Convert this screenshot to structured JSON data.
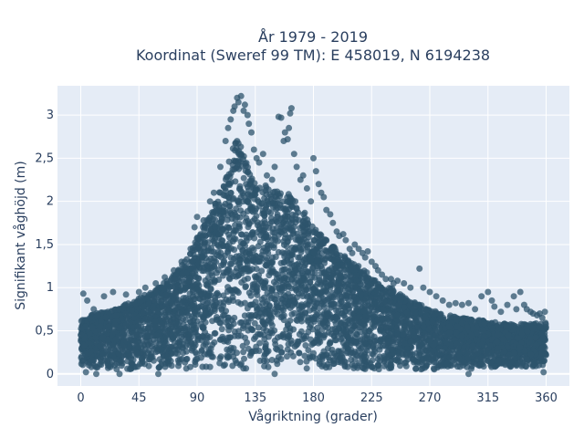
{
  "chart_data": {
    "type": "scatter",
    "title": [
      "År 1979 - 2019",
      "Koordinat (Sweref 99 TM): E 458019, N 6194238"
    ],
    "xlabel": "Vågriktning (grader)",
    "ylabel": "Signifikant våghöjd (m)",
    "xlim": [
      -18,
      378
    ],
    "ylim": [
      -0.14,
      3.34
    ],
    "x_ticks": [
      0,
      45,
      90,
      135,
      180,
      225,
      270,
      315,
      360
    ],
    "x_tick_labels": [
      "0",
      "45",
      "90",
      "135",
      "180",
      "225",
      "270",
      "315",
      "360"
    ],
    "y_ticks": [
      0,
      0.5,
      1,
      1.5,
      2,
      2.5,
      3
    ],
    "y_tick_labels": [
      "0",
      "0,5",
      "1",
      "1,5",
      "2",
      "2,5",
      "3"
    ],
    "grid": true,
    "series": [
      {
        "marker_color": "#2e546c",
        "envelope": {
          "direction": [
            0,
            10,
            20,
            30,
            40,
            50,
            60,
            70,
            80,
            90,
            100,
            110,
            115,
            120,
            125,
            130,
            135,
            140,
            150,
            160,
            170,
            180,
            190,
            200,
            210,
            220,
            230,
            240,
            250,
            260,
            270,
            280,
            290,
            300,
            310,
            320,
            330,
            340,
            350,
            360
          ],
          "lower_height": [
            0.08,
            0.07,
            0.06,
            0.05,
            0.05,
            0.05,
            0.05,
            0.05,
            0.05,
            0.05,
            0.05,
            0.05,
            0.05,
            0.05,
            0.05,
            0.05,
            0.05,
            0.05,
            0.05,
            0.05,
            0.05,
            0.05,
            0.05,
            0.05,
            0.05,
            0.05,
            0.05,
            0.05,
            0.05,
            0.05,
            0.05,
            0.05,
            0.06,
            0.06,
            0.06,
            0.07,
            0.07,
            0.08,
            0.08,
            0.1
          ],
          "upper_height": [
            0.62,
            0.7,
            0.72,
            0.78,
            0.85,
            0.92,
            1.0,
            1.12,
            1.3,
            1.58,
            1.85,
            2.2,
            2.55,
            2.75,
            2.6,
            2.4,
            2.25,
            2.2,
            2.15,
            2.1,
            1.95,
            1.7,
            1.55,
            1.42,
            1.3,
            1.2,
            1.05,
            1.0,
            0.9,
            0.82,
            0.75,
            0.7,
            0.66,
            0.64,
            0.62,
            0.6,
            0.58,
            0.58,
            0.58,
            0.6
          ]
        },
        "outliers": [
          [
            2,
            0.93
          ],
          [
            5,
            0.85
          ],
          [
            10,
            0.75
          ],
          [
            18,
            0.9
          ],
          [
            25,
            0.95
          ],
          [
            35,
            0.92
          ],
          [
            45,
            0.95
          ],
          [
            50,
            1.0
          ],
          [
            58,
            1.05
          ],
          [
            65,
            1.12
          ],
          [
            72,
            1.2
          ],
          [
            78,
            1.3
          ],
          [
            85,
            1.45
          ],
          [
            88,
            1.7
          ],
          [
            90,
            1.82
          ],
          [
            95,
            1.78
          ],
          [
            100,
            2.0
          ],
          [
            103,
            2.1
          ],
          [
            108,
            2.4
          ],
          [
            112,
            2.7
          ],
          [
            114,
            2.85
          ],
          [
            116,
            2.95
          ],
          [
            118,
            3.05
          ],
          [
            119,
            3.1
          ],
          [
            121,
            3.2
          ],
          [
            122,
            3.15
          ],
          [
            124,
            3.22
          ],
          [
            126,
            3.05
          ],
          [
            127,
            3.12
          ],
          [
            129,
            3.0
          ],
          [
            130,
            2.9
          ],
          [
            132,
            2.8
          ],
          [
            134,
            2.6
          ],
          [
            136,
            2.5
          ],
          [
            138,
            2.45
          ],
          [
            141,
            2.55
          ],
          [
            144,
            2.3
          ],
          [
            148,
            2.25
          ],
          [
            150,
            2.4
          ],
          [
            153,
            2.98
          ],
          [
            155,
            2.97
          ],
          [
            157,
            2.7
          ],
          [
            158,
            2.8
          ],
          [
            160,
            2.72
          ],
          [
            161,
            2.85
          ],
          [
            162,
            3.02
          ],
          [
            163,
            3.08
          ],
          [
            165,
            2.55
          ],
          [
            167,
            2.4
          ],
          [
            170,
            2.25
          ],
          [
            172,
            2.3
          ],
          [
            175,
            2.15
          ],
          [
            178,
            2.0
          ],
          [
            180,
            2.5
          ],
          [
            182,
            2.35
          ],
          [
            184,
            2.2
          ],
          [
            186,
            2.1
          ],
          [
            188,
            2.05
          ],
          [
            190,
            1.9
          ],
          [
            193,
            1.85
          ],
          [
            195,
            1.75
          ],
          [
            198,
            1.65
          ],
          [
            200,
            1.6
          ],
          [
            203,
            1.62
          ],
          [
            205,
            1.55
          ],
          [
            208,
            1.45
          ],
          [
            210,
            1.4
          ],
          [
            212,
            1.5
          ],
          [
            215,
            1.45
          ],
          [
            218,
            1.4
          ],
          [
            220,
            1.35
          ],
          [
            222,
            1.42
          ],
          [
            225,
            1.3
          ],
          [
            228,
            1.25
          ],
          [
            230,
            1.2
          ],
          [
            233,
            1.15
          ],
          [
            236,
            1.1
          ],
          [
            240,
            1.1
          ],
          [
            242,
            1.05
          ],
          [
            245,
            1.08
          ],
          [
            250,
            1.05
          ],
          [
            255,
            1.0
          ],
          [
            262,
            1.22
          ],
          [
            265,
            1.0
          ],
          [
            270,
            0.95
          ],
          [
            275,
            0.9
          ],
          [
            280,
            0.85
          ],
          [
            285,
            0.8
          ],
          [
            290,
            0.82
          ],
          [
            295,
            0.8
          ],
          [
            300,
            0.82
          ],
          [
            305,
            0.75
          ],
          [
            310,
            0.9
          ],
          [
            315,
            0.95
          ],
          [
            318,
            0.85
          ],
          [
            320,
            0.78
          ],
          [
            325,
            0.72
          ],
          [
            330,
            0.8
          ],
          [
            335,
            0.9
          ],
          [
            337,
            0.75
          ],
          [
            340,
            0.95
          ],
          [
            343,
            0.8
          ],
          [
            345,
            0.75
          ],
          [
            348,
            0.72
          ],
          [
            350,
            0.7
          ],
          [
            353,
            0.68
          ],
          [
            355,
            0.7
          ],
          [
            357,
            0.65
          ],
          [
            359,
            0.72
          ],
          [
            4,
            0.02
          ],
          [
            12,
            0.0
          ],
          [
            30,
            0.0
          ],
          [
            60,
            0.0
          ],
          [
            150,
            0.0
          ],
          [
            300,
            0.0
          ],
          [
            358,
            0.02
          ]
        ]
      }
    ]
  }
}
